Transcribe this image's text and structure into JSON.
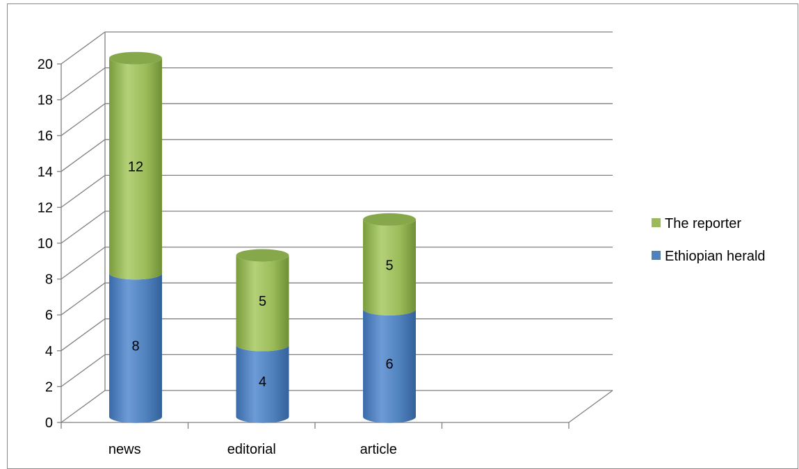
{
  "chart_data": {
    "type": "bar",
    "stacked": true,
    "style": "3d-cylinder",
    "categories": [
      "news",
      "editorial",
      "article"
    ],
    "series": [
      {
        "name": "Ethiopian herald",
        "values": [
          8,
          4,
          6
        ],
        "color": "#4f81bd"
      },
      {
        "name": "The reporter",
        "values": [
          12,
          5,
          5
        ],
        "color": "#9bbb59"
      }
    ],
    "ylim": [
      0,
      20
    ],
    "yticks": [
      0,
      2,
      4,
      6,
      8,
      10,
      12,
      14,
      16,
      18,
      20
    ],
    "grid": true,
    "legend_position": "right",
    "data_labels": true
  }
}
